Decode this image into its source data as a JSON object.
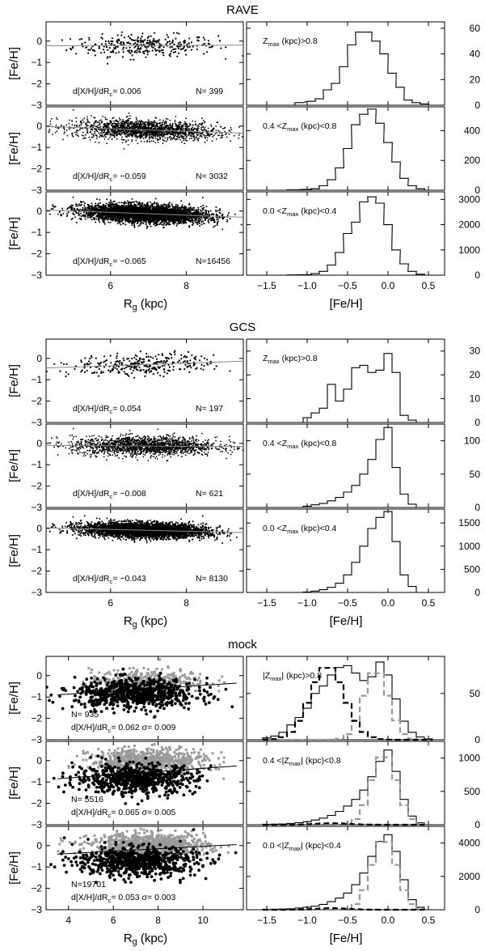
{
  "sections": [
    {
      "title": "RAVE",
      "xlabel_left": "R",
      "xlabel_left_sub": "g",
      "xlabel_left_unit": " (kpc)",
      "xlabel_right": "[Fe/H]",
      "ylabel": "[Fe/H]",
      "left_xticks": [
        "6",
        "8"
      ],
      "right_xticks": [
        "−1.5",
        "−1.0",
        "−0.5",
        "0.0",
        "0.5"
      ],
      "rows": [
        {
          "slope_label": "d[X/H]/dR",
          "slope_sub": "c",
          "slope_value": "=  0.006",
          "n_label": "N=  399",
          "zrange": "Z",
          "zsub": "max",
          "zrest": " (kpc)>0.8",
          "zprefix": "",
          "right_yticks": [
            "60",
            "40",
            "20",
            "0"
          ]
        },
        {
          "slope_label": "d[X/H]/dR",
          "slope_sub": "c",
          "slope_value": "= −0.059",
          "n_label": "N= 3032",
          "zprefix": "0.4 <",
          "zrange": "Z",
          "zsub": "max",
          "zrest": " (kpc)<0.8",
          "right_yticks": [
            "400",
            "200",
            "0"
          ]
        },
        {
          "slope_label": "d[X/H]/dR",
          "slope_sub": "c",
          "slope_value": "= −0.065",
          "n_label": "N=16456",
          "zprefix": "0.0 <",
          "zrange": "Z",
          "zsub": "max",
          "zrest": " (kpc)<0.4",
          "right_yticks": [
            "3000",
            "2000",
            "1000",
            "0"
          ]
        }
      ]
    },
    {
      "title": "GCS",
      "xlabel_left": "R",
      "xlabel_left_sub": "g",
      "xlabel_left_unit": " (kpc)",
      "xlabel_right": "[Fe/H]",
      "ylabel": "[Fe/H]",
      "left_xticks": [
        "6",
        "8"
      ],
      "right_xticks": [
        "−1.5",
        "−1.0",
        "−0.5",
        "0.0",
        "0.5"
      ],
      "rows": [
        {
          "slope_label": "d[X/H]/dR",
          "slope_sub": "c",
          "slope_value": "=  0.054",
          "n_label": "N=  197",
          "zprefix": "",
          "zrange": "Z",
          "zsub": "max",
          "zrest": " (kpc)>0.8",
          "right_yticks": [
            "30",
            "20",
            "10",
            "0"
          ]
        },
        {
          "slope_label": "d[X/H]/dR",
          "slope_sub": "c",
          "slope_value": "= −0.008",
          "n_label": "N=  621",
          "zprefix": "0.4 <",
          "zrange": "Z",
          "zsub": "max",
          "zrest": " (kpc)<0.8",
          "right_yticks": [
            "100",
            "50",
            "0"
          ]
        },
        {
          "slope_label": "d[X/H]/dR",
          "slope_sub": "c",
          "slope_value": "= −0.043",
          "n_label": "N= 8130",
          "zprefix": "0.0 <",
          "zrange": "Z",
          "zsub": "max",
          "zrest": " (kpc)<0.4",
          "right_yticks": [
            "1500",
            "1000",
            "500",
            "0"
          ]
        }
      ]
    },
    {
      "title": "mock",
      "xlabel_left": "R",
      "xlabel_left_sub": "g",
      "xlabel_left_unit": " (kpc)",
      "xlabel_right": "[Fe/H]",
      "ylabel": "[Fe/H]",
      "left_xticks": [
        "4",
        "6",
        "8",
        "10"
      ],
      "right_xticks": [
        "−1.5",
        "−1.0",
        "−0.5",
        "0.0",
        "0.5"
      ],
      "rows": [
        {
          "n_label": "N=  935",
          "slope_label": "d[X/H]/dR",
          "slope_sub": "c",
          "slope_value": "= 0.062  σ=  0.009",
          "zprefix": "|",
          "zrange": "Z",
          "zsub": "max",
          "zrest": "| (kpc)>0.8",
          "right_yticks": [
            "50",
            "0"
          ]
        },
        {
          "n_label": "N= 5516",
          "slope_label": "d[X/H]/dR",
          "slope_sub": "c",
          "slope_value": "= 0.065  σ=  0.005",
          "zprefix": "0.4 <|",
          "zrange": "Z",
          "zsub": "max",
          "zrest": "| (kpc)<0.8",
          "right_yticks": [
            "1000",
            "500",
            "0"
          ]
        },
        {
          "n_label": "N=19701",
          "slope_label": "d[X/H]/dR",
          "slope_sub": "c",
          "slope_value": "= 0.053  σ=  0.003",
          "zprefix": "0.0 <|",
          "zrange": "Z",
          "zsub": "max",
          "zrest": "| (kpc)<0.4",
          "right_yticks": [
            "4000",
            "2000",
            "0"
          ]
        }
      ]
    }
  ],
  "left_yticks": [
    "0",
    "−1",
    "−2",
    "−3"
  ],
  "chart_data": [
    {
      "type": "scatter",
      "section": "RAVE",
      "panel": "Zmax>0.8",
      "n": 399,
      "slope": 0.006,
      "xlim": [
        4.3,
        9.5
      ],
      "ylim": [
        -3,
        0.9
      ],
      "fit": {
        "x": [
          4.3,
          9.5
        ],
        "y": [
          -0.22,
          -0.19
        ]
      }
    },
    {
      "type": "scatter",
      "section": "RAVE",
      "panel": "0.4<Zmax<0.8",
      "n": 3032,
      "slope": -0.059,
      "xlim": [
        4.3,
        9.5
      ],
      "ylim": [
        -3,
        0.9
      ],
      "fit": {
        "x": [
          4.3,
          9.5
        ],
        "y": [
          -0.02,
          -0.33
        ]
      }
    },
    {
      "type": "scatter",
      "section": "RAVE",
      "panel": "0.0<Zmax<0.4",
      "n": 16456,
      "slope": -0.065,
      "xlim": [
        4.3,
        9.5
      ],
      "ylim": [
        -3,
        0.9
      ],
      "fit": {
        "x": [
          4.3,
          9.5
        ],
        "y": [
          0.05,
          -0.29
        ]
      }
    },
    {
      "type": "bar",
      "section": "RAVE",
      "panel": "Zmax>0.8",
      "xlim": [
        -1.75,
        0.7
      ],
      "ylim": [
        0,
        65
      ],
      "bins": [
        -1.1,
        -0.95,
        -0.85,
        -0.75,
        -0.65,
        -0.55,
        -0.45,
        -0.35,
        -0.25,
        -0.15,
        -0.05,
        0.05,
        0.15,
        0.25,
        0.35,
        0.45
      ],
      "values": [
        2,
        3,
        5,
        12,
        17,
        30,
        47,
        57,
        57,
        50,
        40,
        25,
        14,
        4,
        2,
        1
      ]
    },
    {
      "type": "bar",
      "section": "RAVE",
      "panel": "0.4<Zmax<0.8",
      "xlim": [
        -1.75,
        0.7
      ],
      "ylim": [
        0,
        560
      ],
      "bins": [
        -1.2,
        -1.0,
        -0.9,
        -0.8,
        -0.7,
        -0.6,
        -0.5,
        -0.4,
        -0.3,
        -0.2,
        -0.1,
        0.0,
        0.1,
        0.2,
        0.3,
        0.4
      ],
      "values": [
        2,
        5,
        10,
        30,
        70,
        150,
        280,
        440,
        510,
        545,
        450,
        320,
        190,
        80,
        30,
        10
      ]
    },
    {
      "type": "bar",
      "section": "RAVE",
      "panel": "0.0<Zmax<0.4",
      "xlim": [
        -1.75,
        0.7
      ],
      "ylim": [
        0,
        3300
      ],
      "bins": [
        -1.2,
        -1.0,
        -0.9,
        -0.8,
        -0.7,
        -0.6,
        -0.5,
        -0.4,
        -0.3,
        -0.2,
        -0.1,
        0.0,
        0.1,
        0.2,
        0.3,
        0.4
      ],
      "values": [
        10,
        20,
        60,
        150,
        400,
        900,
        1650,
        2100,
        2900,
        3100,
        2850,
        2000,
        1000,
        450,
        150,
        40
      ]
    },
    {
      "type": "scatter",
      "section": "GCS",
      "panel": "Zmax>0.8",
      "n": 197,
      "slope": 0.054,
      "xlim": [
        4.3,
        9.5
      ],
      "ylim": [
        -3,
        0.9
      ],
      "fit": {
        "x": [
          4.3,
          9.5
        ],
        "y": [
          -0.45,
          -0.13
        ]
      }
    },
    {
      "type": "scatter",
      "section": "GCS",
      "panel": "0.4<Zmax<0.8",
      "n": 621,
      "slope": -0.008,
      "xlim": [
        4.3,
        9.5
      ],
      "ylim": [
        -3,
        0.9
      ],
      "fit": {
        "x": [
          4.3,
          9.5
        ],
        "y": [
          -0.1,
          -0.15
        ]
      }
    },
    {
      "type": "scatter",
      "section": "GCS",
      "panel": "0.0<Zmax<0.4",
      "n": 8130,
      "slope": -0.043,
      "xlim": [
        4.3,
        9.5
      ],
      "ylim": [
        -3,
        0.9
      ],
      "fit": {
        "x": [
          4.3,
          9.5
        ],
        "y": [
          0.02,
          -0.2
        ]
      }
    },
    {
      "type": "bar",
      "section": "GCS",
      "panel": "Zmax>0.8",
      "xlim": [
        -1.75,
        0.7
      ],
      "ylim": [
        0,
        35
      ],
      "bins": [
        -1.0,
        -0.9,
        -0.8,
        -0.7,
        -0.6,
        -0.5,
        -0.4,
        -0.3,
        -0.2,
        -0.1,
        0.0,
        0.1,
        0.2,
        0.3
      ],
      "values": [
        2,
        4,
        6,
        16,
        9,
        14,
        23,
        24,
        21,
        22,
        29,
        21,
        3,
        1
      ]
    },
    {
      "type": "bar",
      "section": "GCS",
      "panel": "0.4<Zmax<0.8",
      "xlim": [
        -1.75,
        0.7
      ],
      "ylim": [
        0,
        125
      ],
      "bins": [
        -1.0,
        -0.9,
        -0.8,
        -0.7,
        -0.6,
        -0.5,
        -0.4,
        -0.3,
        -0.2,
        -0.1,
        0.0,
        0.1,
        0.2,
        0.3
      ],
      "values": [
        2,
        4,
        6,
        10,
        15,
        23,
        33,
        50,
        72,
        102,
        120,
        60,
        20,
        5
      ]
    },
    {
      "type": "bar",
      "section": "GCS",
      "panel": "0.0<Zmax<0.4",
      "xlim": [
        -1.75,
        0.7
      ],
      "ylim": [
        0,
        1800
      ],
      "bins": [
        -1.0,
        -0.9,
        -0.8,
        -0.7,
        -0.6,
        -0.5,
        -0.4,
        -0.3,
        -0.2,
        -0.1,
        0.0,
        0.1,
        0.2,
        0.3
      ],
      "values": [
        10,
        30,
        60,
        110,
        200,
        380,
        650,
        1000,
        1380,
        1620,
        1750,
        1100,
        380,
        130
      ]
    },
    {
      "type": "scatter",
      "section": "mock",
      "panel": "|Zmax|>0.8",
      "n": 935,
      "slope": 0.062,
      "sigma": 0.009,
      "xlim": [
        3,
        11.8
      ],
      "ylim": [
        -3,
        0.9
      ],
      "fit": {
        "x": [
          3.5,
          11.5
        ],
        "y": [
          -0.9,
          -0.35
        ]
      }
    },
    {
      "type": "scatter",
      "section": "mock",
      "panel": "0.4<|Zmax|<0.8",
      "n": 5516,
      "slope": 0.065,
      "sigma": 0.005,
      "xlim": [
        3,
        11.8
      ],
      "ylim": [
        -3,
        0.9
      ],
      "fit": {
        "x": [
          3.5,
          11.5
        ],
        "y": [
          -0.85,
          -0.25
        ]
      }
    },
    {
      "type": "scatter",
      "section": "mock",
      "panel": "0.0<|Zmax|<0.4",
      "n": 19701,
      "slope": 0.053,
      "sigma": 0.003,
      "xlim": [
        3,
        11.8
      ],
      "ylim": [
        -3,
        0.9
      ],
      "fit": {
        "x": [
          3.5,
          11.5
        ],
        "y": [
          -0.4,
          0.05
        ]
      }
    },
    {
      "type": "bar",
      "section": "mock",
      "panel": "|Zmax|>0.8",
      "xlim": [
        -1.75,
        0.7
      ],
      "ylim": [
        0,
        90
      ],
      "bins": [
        -1.5,
        -1.4,
        -1.3,
        -1.2,
        -1.1,
        -1.0,
        -0.9,
        -0.8,
        -0.7,
        -0.6,
        -0.5,
        -0.4,
        -0.3,
        -0.2,
        -0.1,
        0.0,
        0.1,
        0.2,
        0.3,
        0.4,
        0.5
      ],
      "values": [
        2,
        4,
        8,
        16,
        24,
        34,
        50,
        58,
        70,
        78,
        80,
        72,
        64,
        68,
        84,
        70,
        44,
        20,
        8,
        3,
        1
      ]
    },
    {
      "type": "bar",
      "section": "mock",
      "panel": "0.4<|Zmax|<0.8",
      "xlim": [
        -1.75,
        0.7
      ],
      "ylim": [
        0,
        1250
      ],
      "bins": [
        -1.5,
        -1.4,
        -1.3,
        -1.2,
        -1.1,
        -1.0,
        -0.9,
        -0.8,
        -0.7,
        -0.6,
        -0.5,
        -0.4,
        -0.3,
        -0.2,
        -0.1,
        0.0,
        0.1,
        0.2,
        0.3,
        0.4
      ],
      "values": [
        5,
        8,
        12,
        20,
        30,
        45,
        70,
        100,
        140,
        200,
        280,
        380,
        520,
        720,
        950,
        1120,
        800,
        380,
        130,
        30
      ]
    },
    {
      "type": "bar",
      "section": "mock",
      "panel": "0.0<|Zmax|<0.4",
      "xlim": [
        -1.75,
        0.7
      ],
      "ylim": [
        0,
        5000
      ],
      "bins": [
        -1.5,
        -1.4,
        -1.3,
        -1.2,
        -1.1,
        -1.0,
        -0.9,
        -0.8,
        -0.7,
        -0.6,
        -0.5,
        -0.4,
        -0.3,
        -0.2,
        -0.1,
        0.0,
        0.1,
        0.2,
        0.3,
        0.4
      ],
      "values": [
        10,
        20,
        40,
        60,
        100,
        150,
        220,
        320,
        480,
        700,
        1000,
        1500,
        2200,
        3200,
        4100,
        4500,
        3500,
        1800,
        600,
        150
      ]
    }
  ]
}
